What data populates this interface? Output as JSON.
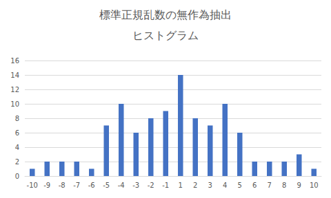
{
  "chart_data": {
    "type": "bar",
    "title": "標準正規乱数の無作為抽出",
    "subtitle": "ヒストグラム",
    "categories": [
      "-10",
      "-9",
      "-8",
      "-7",
      "-6",
      "-5",
      "-4",
      "-3",
      "-2",
      "-1",
      "1",
      "2",
      "3",
      "4",
      "5",
      "6",
      "7",
      "8",
      "9",
      "10"
    ],
    "values": [
      1,
      2,
      2,
      2,
      1,
      7,
      10,
      6,
      8,
      9,
      14,
      8,
      7,
      10,
      6,
      2,
      2,
      2,
      3,
      1
    ],
    "color": "#4472c4",
    "ylim": [
      0,
      16
    ],
    "yticks": [
      0,
      2,
      4,
      6,
      8,
      10,
      12,
      14,
      16
    ],
    "grid": true
  }
}
